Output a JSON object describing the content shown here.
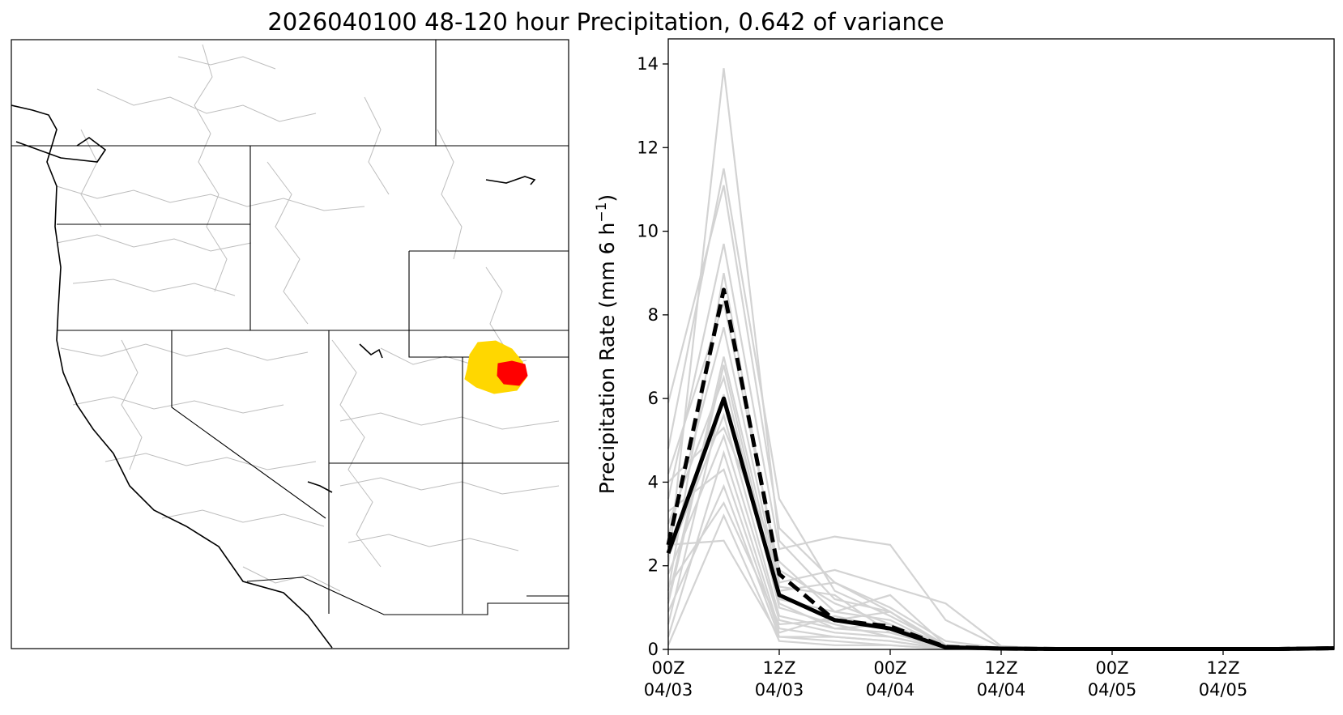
{
  "figure": {
    "title": "2026040100 48-120 hour Precipitation, 0.642 of variance"
  },
  "colors": {
    "ensemble": "#d3d3d3",
    "mean": "#000000",
    "basin_outer": "#ffd700",
    "basin_inner": "#ff0000",
    "borders": "#000000",
    "watersheds": "#bdbdbd"
  },
  "map": {
    "description_name": "western-us-watershed-map",
    "highlight_outer": "yellow basin",
    "highlight_inner": "red sub-basin"
  },
  "chart_data": {
    "type": "line",
    "title": "2026040100 48-120 hour Precipitation, 0.642 of variance",
    "ylabel": "Precipitation Rate (mm 6 h",
    "ylabel_sup": "−1",
    "ylabel_end": ")",
    "xlabel": "",
    "ylim": [
      0,
      14.6
    ],
    "xlim": [
      0,
      72
    ],
    "yticks": [
      0,
      2,
      4,
      6,
      8,
      10,
      12,
      14
    ],
    "xticks": [
      {
        "x": 0,
        "line1": "00Z",
        "line2": "04/03"
      },
      {
        "x": 12,
        "line1": "12Z",
        "line2": "04/03"
      },
      {
        "x": 24,
        "line1": "00Z",
        "line2": "04/04"
      },
      {
        "x": 36,
        "line1": "12Z",
        "line2": "04/04"
      },
      {
        "x": 48,
        "line1": "00Z",
        "line2": "04/05"
      },
      {
        "x": 60,
        "line1": "12Z",
        "line2": "04/05"
      }
    ],
    "x": [
      0,
      6,
      12,
      18,
      24,
      30,
      36,
      42,
      48,
      54,
      60,
      66,
      72
    ],
    "mean_series": {
      "name": "ensemble mean (solid)",
      "values": [
        2.3,
        6.0,
        1.3,
        0.7,
        0.5,
        0.05,
        0.02,
        0.01,
        0.01,
        0.01,
        0.01,
        0.01,
        0.03
      ]
    },
    "control_series": {
      "name": "dashed",
      "values": [
        2.5,
        8.6,
        1.8,
        0.7,
        0.55,
        0.06,
        0.02,
        0.01,
        0.01,
        0.01,
        0.01,
        0.01,
        0.03
      ]
    },
    "ensemble_members": [
      {
        "name": "m01",
        "values": [
          2.0,
          13.9,
          2.6,
          1.2,
          0.9,
          0.1,
          0.02,
          0.01,
          0.01,
          0.01,
          0.01,
          0.01,
          0.02
        ]
      },
      {
        "name": "m02",
        "values": [
          4.8,
          11.5,
          3.6,
          1.4,
          0.8,
          0.1,
          0.03,
          0.01,
          0.01,
          0.01,
          0.01,
          0.01,
          0.02
        ]
      },
      {
        "name": "m03",
        "values": [
          5.9,
          11.1,
          2.9,
          1.6,
          1.0,
          0.2,
          0.03,
          0.01,
          0.01,
          0.01,
          0.01,
          0.01,
          0.02
        ]
      },
      {
        "name": "m04",
        "values": [
          3.6,
          9.7,
          2.4,
          2.7,
          2.5,
          0.7,
          0.05,
          0.01,
          0.01,
          0.01,
          0.01,
          0.01,
          0.02
        ]
      },
      {
        "name": "m05",
        "values": [
          1.4,
          9.0,
          1.6,
          1.9,
          1.5,
          1.1,
          0.08,
          0.01,
          0.01,
          0.01,
          0.01,
          0.01,
          0.02
        ]
      },
      {
        "name": "m06",
        "values": [
          4.2,
          8.3,
          1.9,
          1.1,
          0.6,
          0.05,
          0.02,
          0.01,
          0.01,
          0.01,
          0.01,
          0.01,
          0.02
        ]
      },
      {
        "name": "m07",
        "values": [
          2.7,
          7.7,
          1.5,
          1.3,
          0.4,
          0.05,
          0.02,
          0.01,
          0.01,
          0.01,
          0.01,
          0.01,
          0.02
        ]
      },
      {
        "name": "m08",
        "values": [
          1.2,
          7.0,
          1.4,
          1.6,
          0.9,
          0.05,
          0.02,
          0.01,
          0.01,
          0.01,
          0.01,
          0.01,
          0.02
        ]
      },
      {
        "name": "m09",
        "values": [
          3.0,
          6.5,
          1.0,
          0.6,
          0.3,
          0.03,
          0.01,
          0.01,
          0.01,
          0.01,
          0.01,
          0.01,
          0.02
        ]
      },
      {
        "name": "m10",
        "values": [
          0.6,
          6.1,
          1.2,
          0.9,
          0.7,
          0.05,
          0.01,
          0.01,
          0.01,
          0.01,
          0.01,
          0.01,
          0.02
        ]
      },
      {
        "name": "m11",
        "values": [
          2.2,
          5.6,
          0.8,
          0.5,
          0.4,
          0.03,
          0.01,
          0.01,
          0.01,
          0.01,
          0.01,
          0.01,
          0.02
        ]
      },
      {
        "name": "m12",
        "values": [
          1.8,
          5.1,
          0.7,
          0.4,
          0.3,
          0.02,
          0.01,
          0.01,
          0.01,
          0.01,
          0.01,
          0.01,
          0.02
        ]
      },
      {
        "name": "m13",
        "values": [
          0.3,
          4.7,
          0.5,
          0.3,
          0.2,
          0.02,
          0.01,
          0.01,
          0.01,
          0.01,
          0.01,
          0.01,
          0.02
        ]
      },
      {
        "name": "m14",
        "values": [
          3.3,
          4.3,
          0.4,
          0.8,
          0.5,
          0.02,
          0.01,
          0.01,
          0.01,
          0.01,
          0.01,
          0.01,
          0.02
        ]
      },
      {
        "name": "m15",
        "values": [
          0.9,
          3.9,
          0.3,
          0.2,
          0.1,
          0.01,
          0.01,
          0.01,
          0.01,
          0.01,
          0.01,
          0.01,
          0.02
        ]
      },
      {
        "name": "m16",
        "values": [
          1.5,
          3.5,
          0.6,
          0.7,
          0.9,
          0.03,
          0.01,
          0.01,
          0.01,
          0.01,
          0.01,
          0.01,
          0.02
        ]
      },
      {
        "name": "m17",
        "values": [
          0.1,
          3.2,
          0.2,
          0.1,
          0.1,
          0.01,
          0.01,
          0.01,
          0.01,
          0.01,
          0.01,
          0.01,
          0.02
        ]
      },
      {
        "name": "m18",
        "values": [
          2.5,
          2.6,
          0.3,
          0.3,
          0.2,
          0.01,
          0.01,
          0.01,
          0.01,
          0.01,
          0.01,
          0.01,
          0.02
        ]
      },
      {
        "name": "m19",
        "values": [
          4.0,
          5.3,
          2.1,
          0.9,
          1.3,
          0.1,
          0.02,
          0.01,
          0.01,
          0.01,
          0.01,
          0.01,
          0.02
        ]
      },
      {
        "name": "m20",
        "values": [
          1.1,
          6.8,
          1.1,
          0.5,
          0.6,
          0.05,
          0.02,
          0.01,
          0.01,
          0.01,
          0.01,
          0.01,
          0.02
        ]
      }
    ]
  }
}
